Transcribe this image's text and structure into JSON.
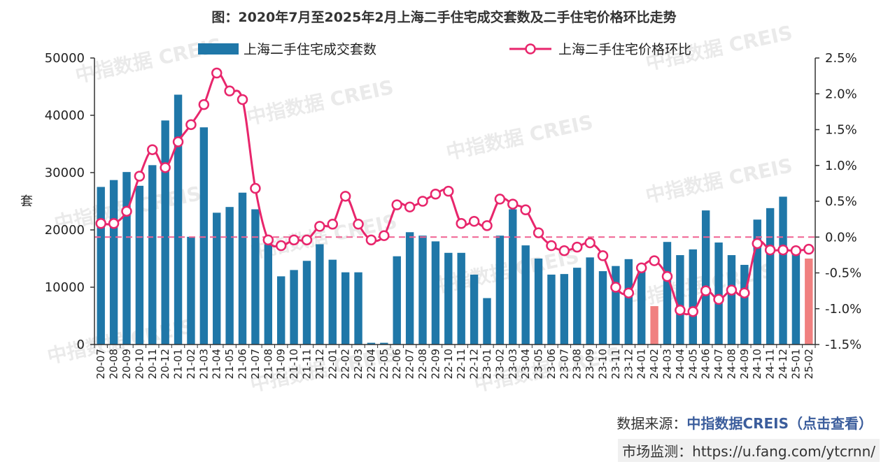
{
  "title": "图：2020年7月至2025年2月上海二手住宅成交套数及二手住宅价格环比走势",
  "source": {
    "label": "数据来源：",
    "name": "中指数据CREIS（点击查看）"
  },
  "monitor": {
    "label": "市场监测：",
    "url": "https://u.fang.com/ytcrnn/"
  },
  "watermark": "中指数据 CREIS",
  "chart_data": {
    "type": "bar",
    "categories": [
      "20-07",
      "20-08",
      "20-09",
      "20-10",
      "20-11",
      "20-12",
      "21-01",
      "21-02",
      "21-03",
      "21-04",
      "21-05",
      "21-06",
      "21-07",
      "21-08",
      "21-09",
      "21-10",
      "21-11",
      "21-12",
      "22-01",
      "22-02",
      "22-03",
      "22-04",
      "22-05",
      "22-06",
      "22-07",
      "22-08",
      "22-09",
      "22-10",
      "22-11",
      "22-12",
      "23-01",
      "23-02",
      "23-03",
      "23-04",
      "23-05",
      "23-06",
      "23-07",
      "23-08",
      "23-09",
      "23-10",
      "23-11",
      "23-12",
      "24-01",
      "24-02",
      "24-03",
      "24-04",
      "24-05",
      "24-06",
      "24-07",
      "24-08",
      "24-09",
      "24-10",
      "24-11",
      "24-12",
      "25-01",
      "25-02"
    ],
    "xtick_labels": [
      "20-07",
      "20-08",
      "20-09",
      "20-10",
      "20-11",
      "20-12",
      "21-01",
      "21-02",
      "21-03",
      "21-04",
      "21-05",
      "21-06",
      "21-07",
      "21-08",
      "21-09",
      "21-10",
      "21-11",
      "21-12",
      "22-01",
      "22-02",
      "22-03",
      "22-04",
      "22-05",
      "22-06",
      "22-07",
      "22-08",
      "22-09",
      "22-10",
      "22-11",
      "22-12",
      "23-01",
      "23-02",
      "23-03",
      "23-04",
      "23-05",
      "23-06",
      "23-07",
      "23-08",
      "23-09",
      "23-10",
      "23-11",
      "23-12",
      "24-01",
      "24-02",
      "24-03",
      "24-04",
      "24-05",
      "24-06",
      "24-07",
      "24-08",
      "24-09",
      "24-10",
      "24-11",
      "24-12",
      "25-01",
      "25-02"
    ],
    "series": [
      {
        "name": "上海二手住宅成交套数",
        "kind": "bar",
        "axis": "left",
        "color": "#1f77a8",
        "highlight_color": "#f08080",
        "highlight_categories": [
          "24-02",
          "25-02"
        ],
        "values": [
          27500,
          28700,
          30100,
          27700,
          31300,
          39100,
          43600,
          18800,
          37900,
          23000,
          24000,
          26500,
          23600,
          17500,
          11900,
          13000,
          14600,
          17500,
          14800,
          12600,
          12600,
          300,
          300,
          15400,
          19600,
          19000,
          18000,
          16000,
          16000,
          12200,
          8100,
          19000,
          23600,
          17300,
          15000,
          12200,
          12300,
          13400,
          15200,
          12800,
          13700,
          14900,
          14000,
          6700,
          17900,
          15600,
          16600,
          23400,
          17800,
          15600,
          13900,
          21800,
          23800,
          25800,
          15800,
          15000
        ]
      },
      {
        "name": "上海二手住宅价格环比",
        "kind": "line",
        "axis": "right",
        "color": "#e8266c",
        "values": [
          0.19,
          0.19,
          0.36,
          0.85,
          1.22,
          0.97,
          1.33,
          1.57,
          1.85,
          2.29,
          2.04,
          1.92,
          0.68,
          -0.04,
          -0.12,
          -0.04,
          -0.04,
          0.15,
          0.18,
          0.57,
          0.18,
          -0.04,
          0.02,
          0.45,
          0.42,
          0.5,
          0.6,
          0.64,
          0.19,
          0.22,
          0.16,
          0.53,
          0.46,
          0.38,
          0.06,
          -0.12,
          -0.19,
          -0.14,
          -0.08,
          -0.26,
          -0.7,
          -0.78,
          -0.43,
          -0.33,
          -0.55,
          -1.02,
          -1.04,
          -0.75,
          -0.87,
          -0.74,
          -0.78,
          -0.09,
          -0.18,
          -0.18,
          -0.19,
          -0.17
        ]
      }
    ],
    "y_left": {
      "label": "套",
      "min": 0,
      "max": 50000,
      "ticks": [
        "0",
        "10000",
        "20000",
        "30000",
        "40000",
        "50000"
      ]
    },
    "y_right": {
      "min": -1.5,
      "max": 2.5,
      "ticks": [
        "-1.5%",
        "-1.0%",
        "-0.5%",
        "0.0%",
        "0.5%",
        "1.0%",
        "1.5%",
        "2.0%",
        "2.5%"
      ]
    },
    "reference_line": {
      "axis": "right",
      "value": 0.0,
      "color": "#f06292"
    },
    "legend_position": "top",
    "grid": false
  }
}
